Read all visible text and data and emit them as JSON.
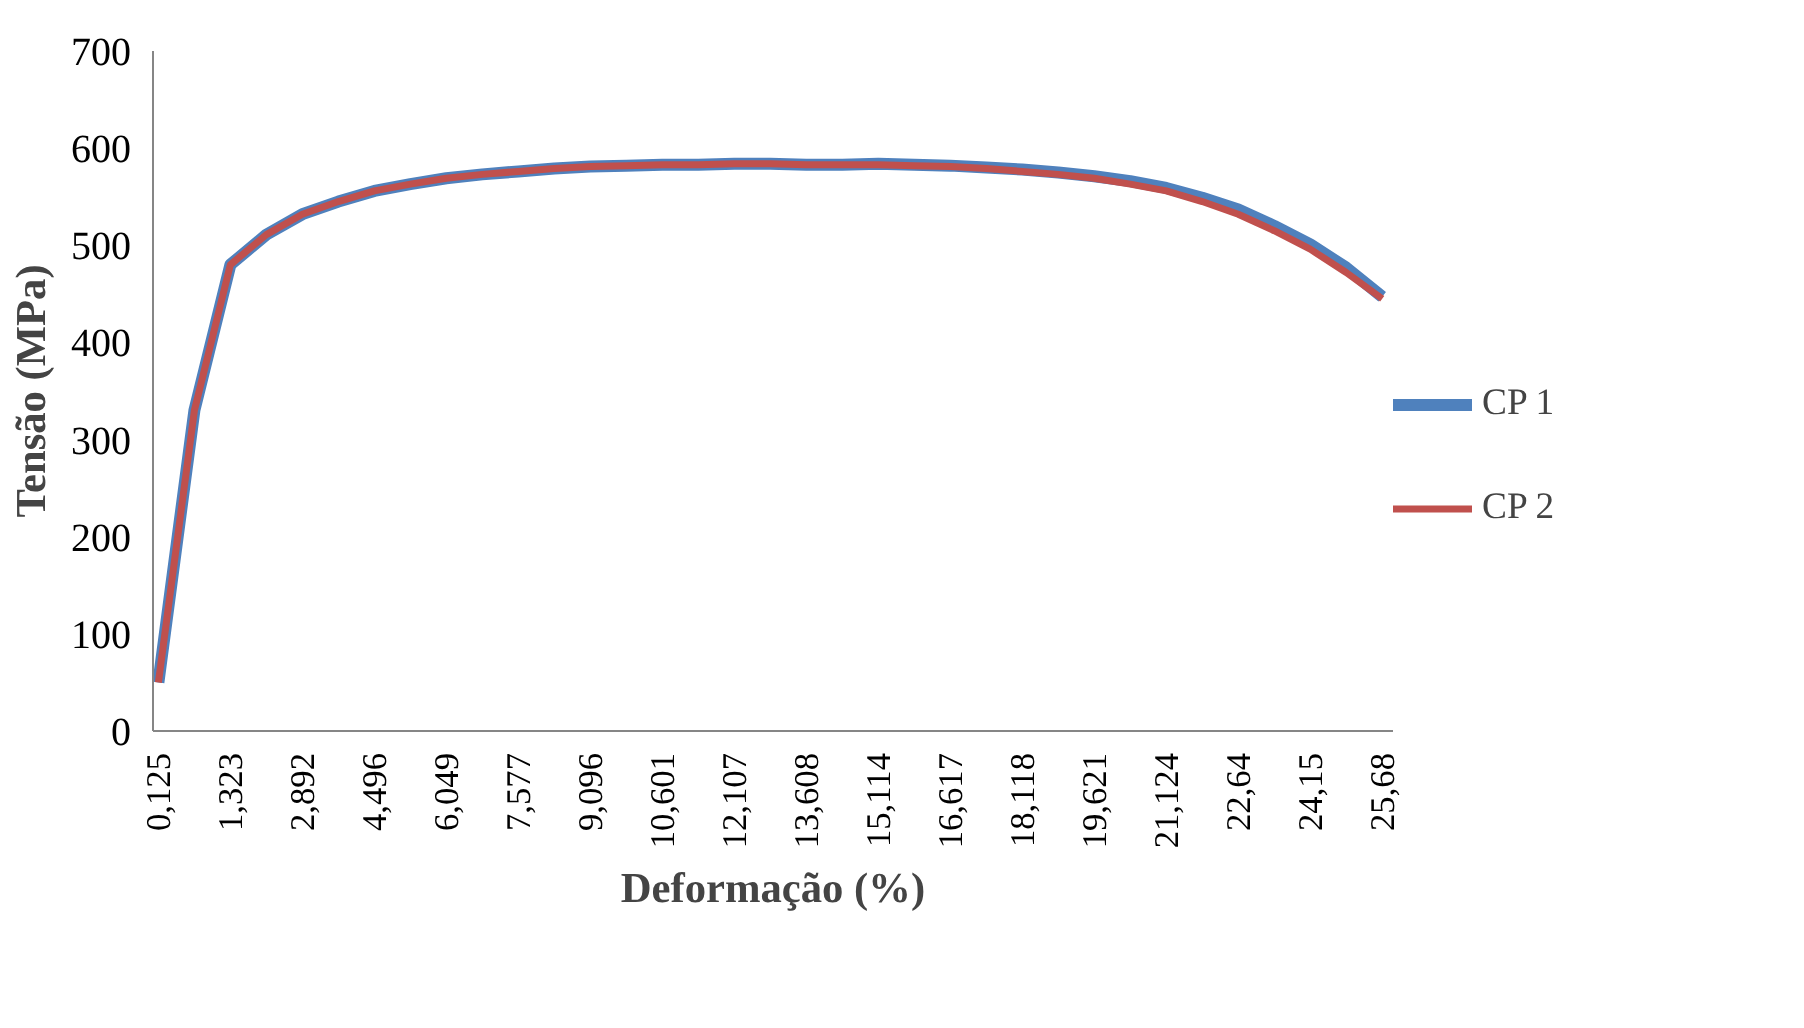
{
  "chart_data": {
    "type": "line",
    "xlabel": "Deformação (%)",
    "ylabel": "Tensão (MPa)",
    "categories": [
      "0,125",
      null,
      "1,323",
      null,
      "2,892",
      null,
      "4,496",
      null,
      "6,049",
      null,
      "7,577",
      null,
      "9,096",
      null,
      "10,601",
      null,
      "12,107",
      null,
      "13,608",
      null,
      "15,114",
      null,
      "16,617",
      null,
      "18,118",
      null,
      "19,621",
      null,
      "21,124",
      null,
      "22,64",
      null,
      "24,15",
      null,
      "25,68"
    ],
    "series": [
      {
        "name": "CP 1",
        "color": "#4f81bd",
        "values": [
          50,
          330,
          480,
          511,
          532,
          545,
          556,
          563,
          569,
          573,
          576,
          579,
          581,
          582,
          583,
          583,
          584,
          584,
          583,
          583,
          584,
          583,
          582,
          580,
          578,
          575,
          571,
          566,
          559,
          549,
          537,
          520,
          501,
          477,
          447
        ]
      },
      {
        "name": "CP 2",
        "color": "#c0504d",
        "values": [
          50,
          330,
          480,
          511,
          532,
          545,
          556,
          563,
          569,
          573,
          576,
          579,
          581,
          582,
          583,
          583,
          584,
          584,
          583,
          583,
          583,
          582,
          581,
          579,
          576,
          573,
          569,
          563,
          556,
          545,
          532,
          515,
          496,
          472,
          445
        ]
      }
    ],
    "ylim": [
      0,
      700
    ],
    "yticks": [
      0,
      100,
      200,
      300,
      400,
      500,
      600,
      700
    ],
    "grid": false,
    "legend": "right",
    "marker": "none",
    "line_style": "solid"
  }
}
